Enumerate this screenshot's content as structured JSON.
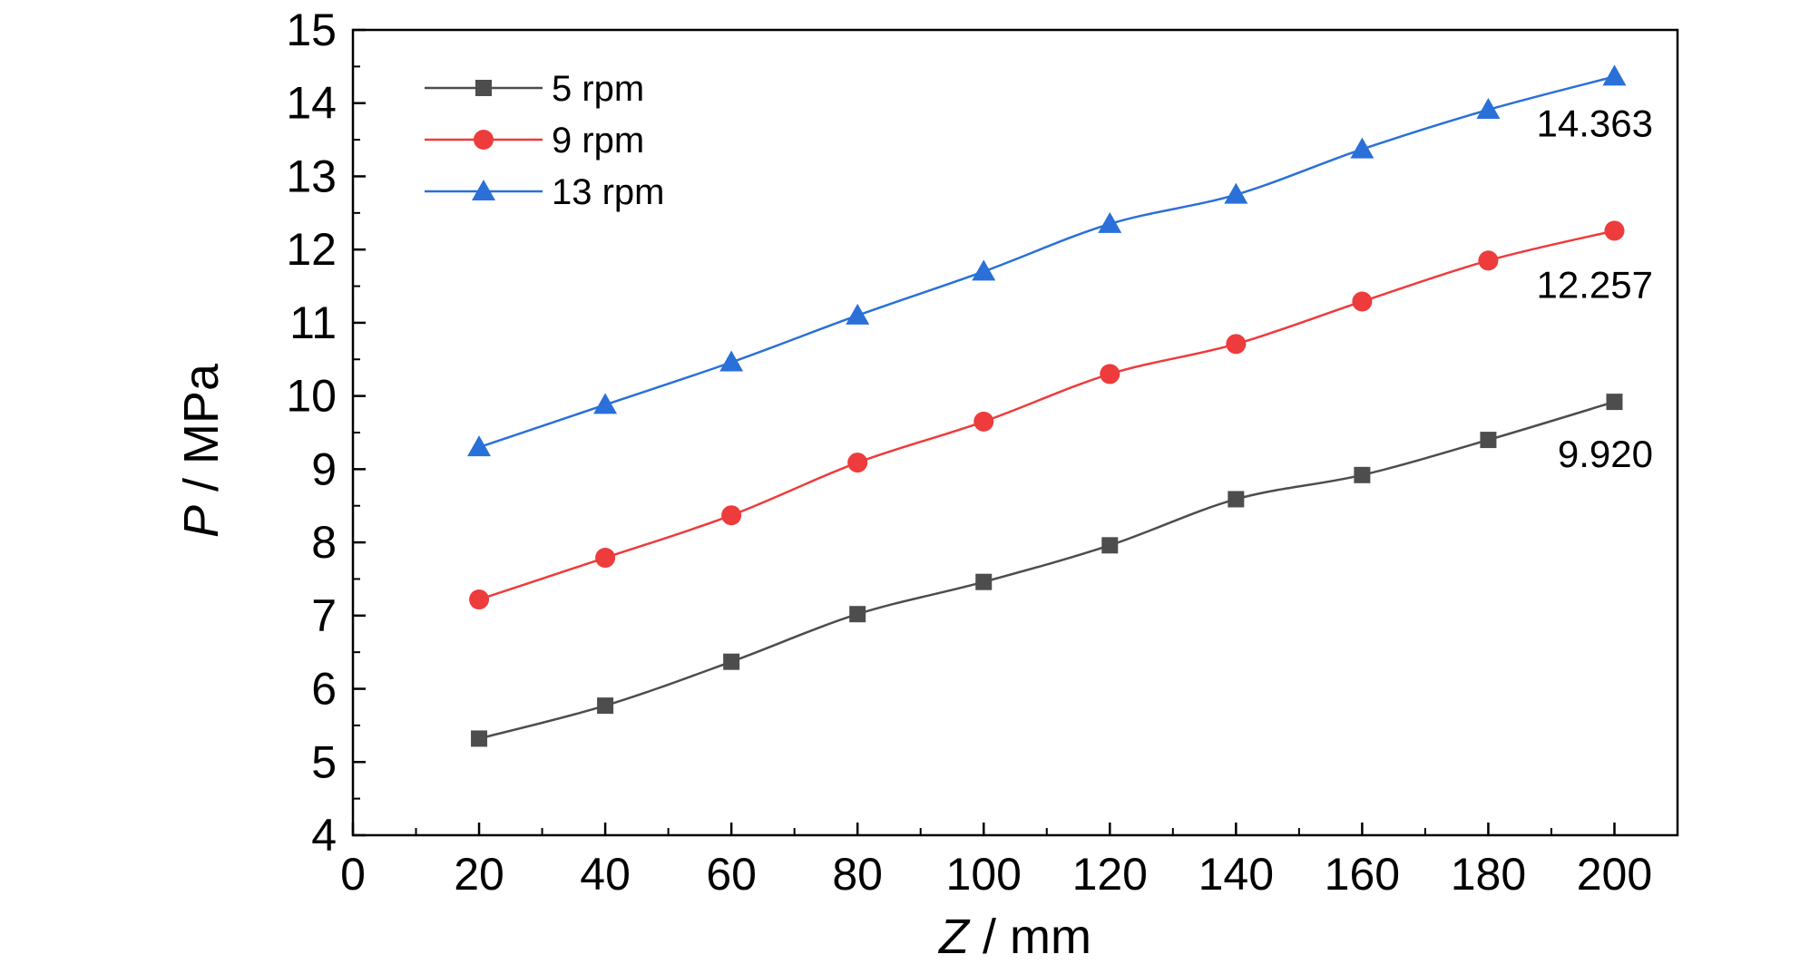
{
  "chart_data": {
    "type": "line",
    "title": "",
    "xlabel_var": "Z",
    "xlabel_unit": " / mm",
    "ylabel_var": "P",
    "ylabel_unit": " / MPa",
    "xlim": [
      0,
      210
    ],
    "ylim": [
      4,
      15
    ],
    "xticks": [
      0,
      20,
      40,
      60,
      80,
      100,
      120,
      140,
      160,
      180,
      200
    ],
    "yticks": [
      4,
      5,
      6,
      7,
      8,
      9,
      10,
      11,
      12,
      13,
      14,
      15
    ],
    "x": [
      20,
      40,
      60,
      80,
      100,
      120,
      140,
      160,
      180,
      200
    ],
    "grid": false,
    "legend_position": "top-left",
    "series": [
      {
        "name": "5 rpm",
        "color": "#4d4d4d",
        "marker": "square",
        "values": [
          5.32,
          5.77,
          6.37,
          7.02,
          7.46,
          7.96,
          8.59,
          8.92,
          9.4,
          9.92
        ]
      },
      {
        "name": "9 rpm",
        "color": "#ee3b3b",
        "marker": "circle",
        "values": [
          7.22,
          7.79,
          8.37,
          9.09,
          9.65,
          10.3,
          10.71,
          11.29,
          11.85,
          12.257
        ]
      },
      {
        "name": "13 rpm",
        "color": "#2a70d8",
        "marker": "triangle",
        "values": [
          9.3,
          9.88,
          10.46,
          11.1,
          11.7,
          12.35,
          12.75,
          13.37,
          13.91,
          14.363
        ]
      }
    ],
    "annotations": [
      "9.920",
      "12.257",
      "14.363"
    ]
  }
}
